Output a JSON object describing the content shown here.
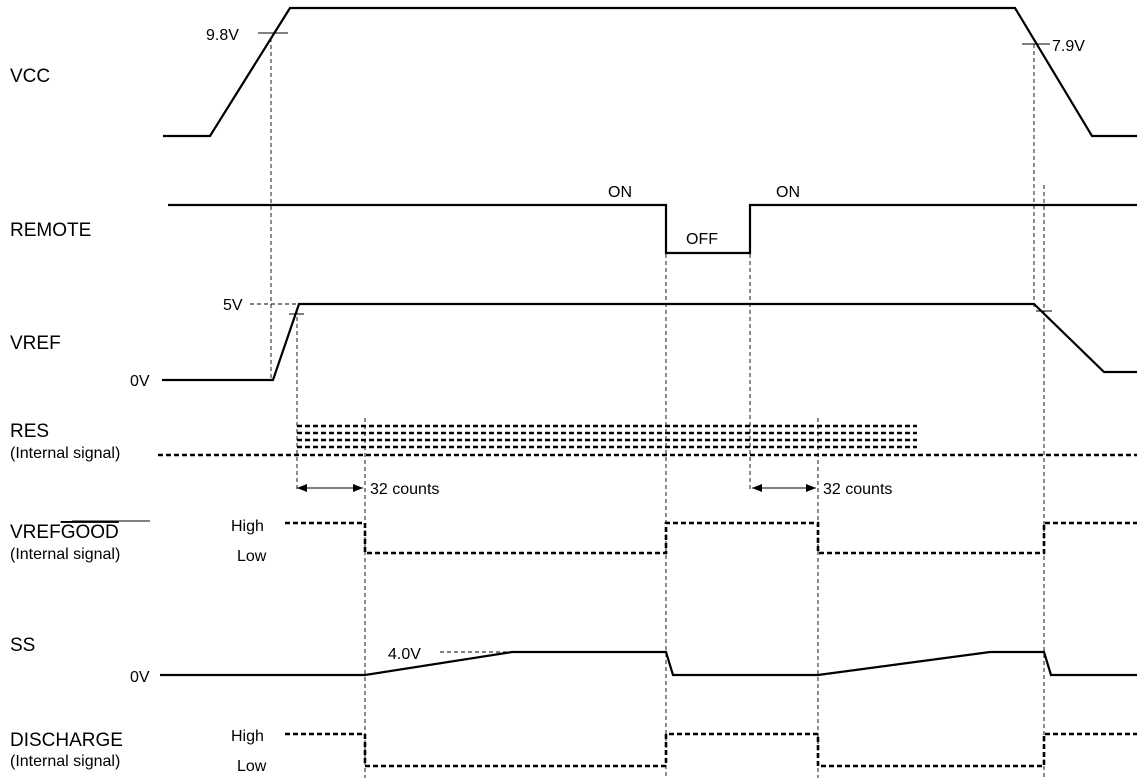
{
  "signals": {
    "vcc": {
      "name": "VCC",
      "rise_threshold": "9.8V",
      "fall_threshold": "7.9V"
    },
    "remote": {
      "name": "REMOTE",
      "on_left": "ON",
      "off": "OFF",
      "on_right": "ON"
    },
    "vref": {
      "name": "VREF",
      "level_high": "5V",
      "level_low": "0V"
    },
    "res": {
      "name": "RES",
      "note": "(Internal signal)",
      "count_left": "32 counts",
      "count_right": "32 counts"
    },
    "vrefgood": {
      "name_prefix": "VREF",
      "name_overline": "GOOD",
      "note": "(Internal signal)",
      "high": "High",
      "low": "Low"
    },
    "ss": {
      "name": "SS",
      "level_high": "4.0V",
      "level_low": "0V"
    },
    "discharge": {
      "name": "DISCHARGE",
      "note": "(Internal signal)",
      "high": "High",
      "low": "Low"
    }
  }
}
